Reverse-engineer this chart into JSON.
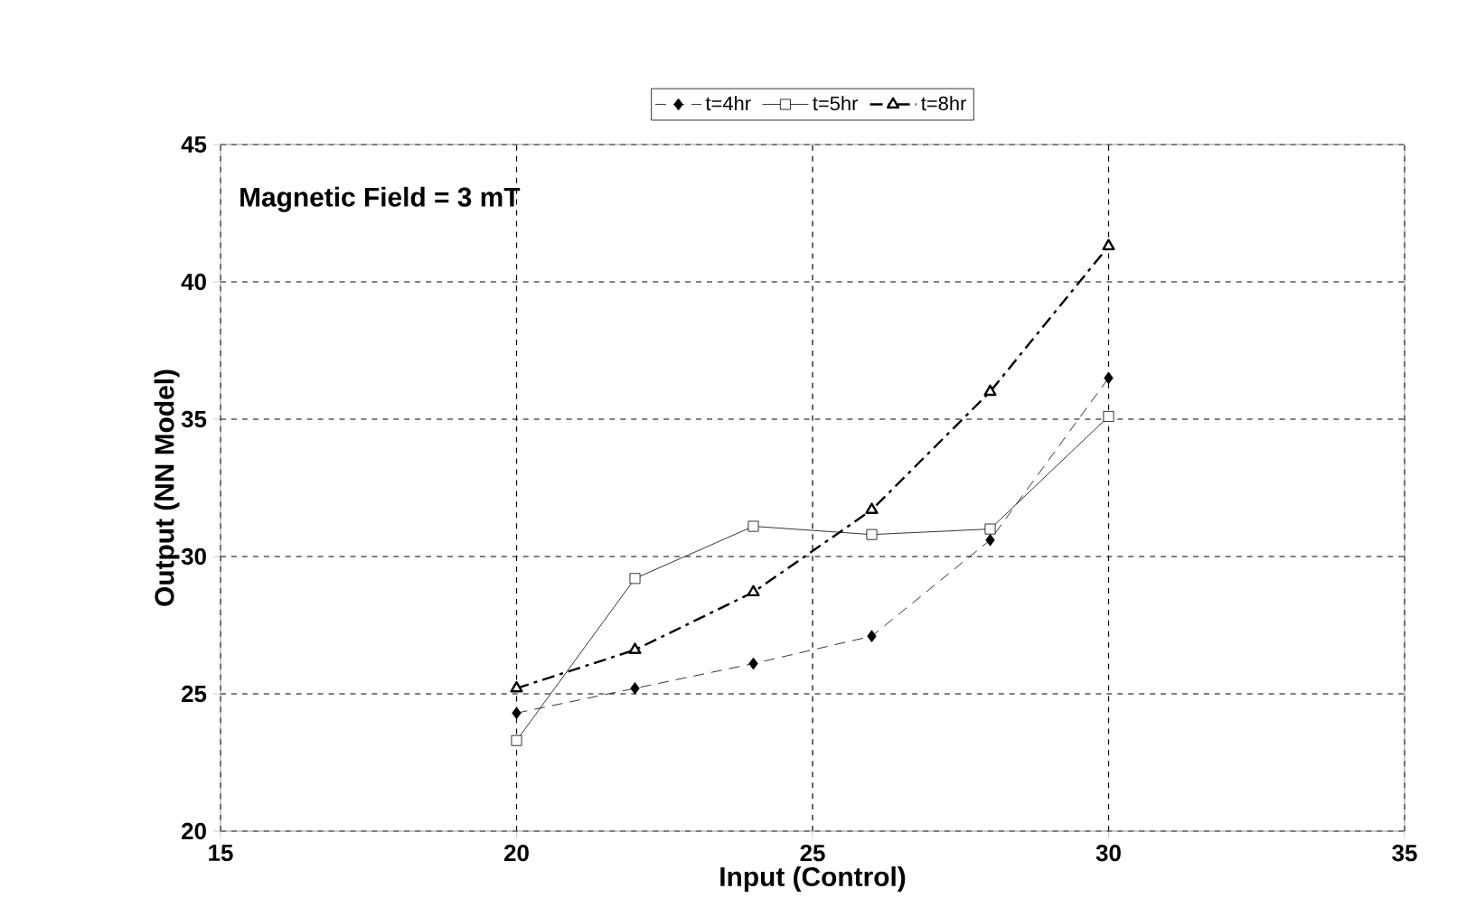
{
  "chart_data": {
    "type": "line",
    "xlabel": "Input (Control)",
    "ylabel": "Output (NN Model)",
    "annotations": [
      "Magnetic Field = 3 mT"
    ],
    "x": [
      20,
      22,
      24,
      26,
      28,
      30
    ],
    "series": [
      {
        "name": "t=4hr",
        "color": "#000000",
        "values": [
          24.3,
          25.2,
          26.1,
          27.1,
          30.6,
          36.5
        ],
        "marker": "diamond",
        "line_style": "dashed"
      },
      {
        "name": "t=5hr",
        "color": "#000000",
        "values": [
          23.3,
          29.2,
          31.1,
          30.8,
          31.0,
          35.1
        ],
        "marker": "square",
        "line_style": "solid"
      },
      {
        "name": "t=8hr",
        "color": "#000000",
        "values": [
          25.2,
          26.6,
          28.7,
          31.7,
          36.0,
          41.3
        ],
        "marker": "triangle",
        "line_style": "dashdot"
      }
    ],
    "xlim": [
      15,
      35
    ],
    "xticks": [
      15,
      20,
      25,
      30,
      35
    ],
    "ylim": [
      20,
      45
    ],
    "yticks": [
      20,
      25,
      30,
      35,
      40,
      45
    ],
    "grid": true,
    "legend": "top"
  }
}
